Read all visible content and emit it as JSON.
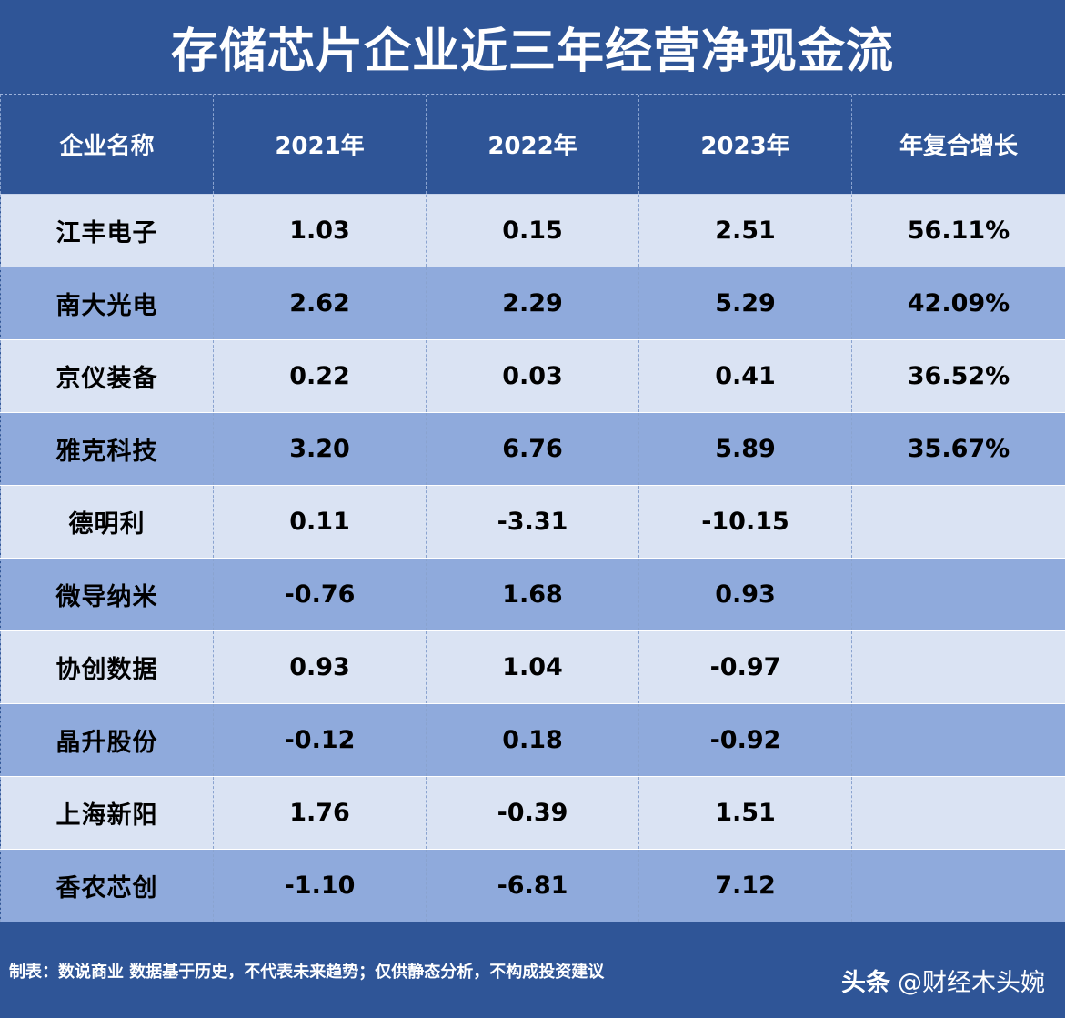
{
  "chart_data": {
    "type": "table",
    "title": "存储芯片企业近三年经营净现金流",
    "columns": [
      "企业名称",
      "2021年",
      "2022年",
      "2023年",
      "年复合增长"
    ],
    "rows": [
      [
        "江丰电子",
        "1.03",
        "0.15",
        "2.51",
        "56.11%"
      ],
      [
        "南大光电",
        "2.62",
        "2.29",
        "5.29",
        "42.09%"
      ],
      [
        "京仪装备",
        "0.22",
        "0.03",
        "0.41",
        "36.52%"
      ],
      [
        "雅克科技",
        "3.20",
        "6.76",
        "5.89",
        "35.67%"
      ],
      [
        "德明利",
        "0.11",
        "-3.31",
        "-10.15",
        ""
      ],
      [
        "微导纳米",
        "-0.76",
        "1.68",
        "0.93",
        ""
      ],
      [
        "协创数据",
        "0.93",
        "1.04",
        "-0.97",
        ""
      ],
      [
        "晶升股份",
        "-0.12",
        "0.18",
        "-0.92",
        ""
      ],
      [
        "上海新阳",
        "1.76",
        "-0.39",
        "1.51",
        ""
      ],
      [
        "香农芯创",
        "-1.10",
        "-6.81",
        "7.12",
        ""
      ]
    ]
  },
  "footer": {
    "note": "制表：数说商业 数据基于历史，不代表未来趋势；仅供静态分析，不构成投资建议"
  },
  "watermark": {
    "brand": "头条",
    "handle": "@财经木头婉"
  },
  "colors": {
    "header_bg": "#2f5597",
    "row_light": "#dae3f3",
    "row_dark": "#8faadc"
  }
}
